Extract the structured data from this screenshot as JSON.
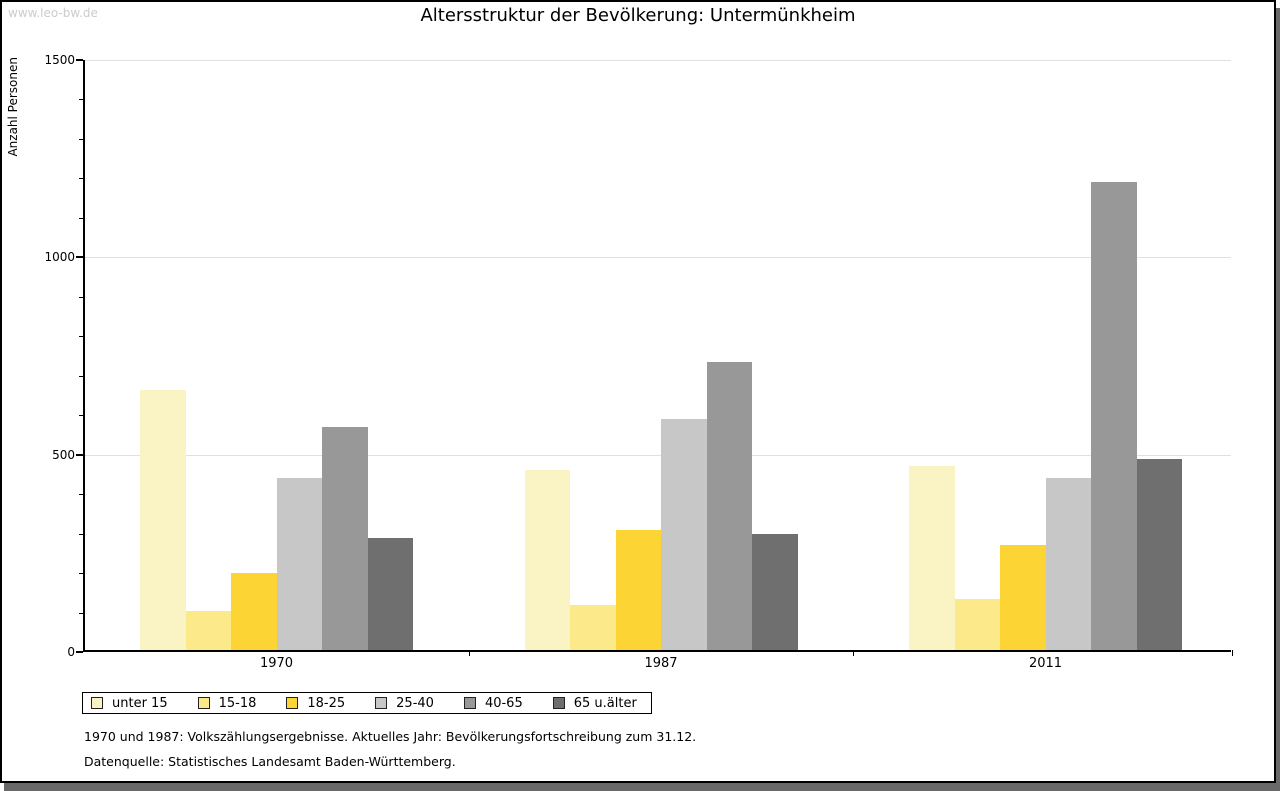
{
  "watermark": "www.leo-bw.de",
  "title": "Altersstruktur der Bevölkerung: Untermünkheim",
  "footnotes": [
    "1970 und 1987: Volkszählungsergebnisse. Aktuelles Jahr: Bevölkerungsfortschreibung zum 31.12.",
    "Datenquelle: Statistisches Landesamt Baden-Württemberg."
  ],
  "chart_data": {
    "type": "bar",
    "title": "Altersstruktur der Bevölkerung: Untermünkheim",
    "xlabel": "",
    "ylabel": "Anzahl Personen",
    "ylim": [
      0,
      1500
    ],
    "yticks_major": [
      0,
      500,
      1000,
      1500
    ],
    "ytick_minor_step": 100,
    "grid": true,
    "gridline_color": "#e0e0e0",
    "legend_position": "bottom-left",
    "categories": [
      "1970",
      "1987",
      "2011"
    ],
    "series": [
      {
        "name": "unter 15",
        "color": "#FAF3C4",
        "values": [
          660,
          455,
          465
        ]
      },
      {
        "name": "15-18",
        "color": "#FCE98A",
        "values": [
          100,
          115,
          130
        ]
      },
      {
        "name": "18-25",
        "color": "#FCD535",
        "values": [
          195,
          305,
          265
        ]
      },
      {
        "name": "25-40",
        "color": "#C7C7C7",
        "values": [
          435,
          585,
          435
        ]
      },
      {
        "name": "40-65",
        "color": "#989898",
        "values": [
          565,
          730,
          1185
        ]
      },
      {
        "name": "65 u.älter",
        "color": "#6F6F6F",
        "values": [
          285,
          295,
          485
        ]
      }
    ]
  }
}
